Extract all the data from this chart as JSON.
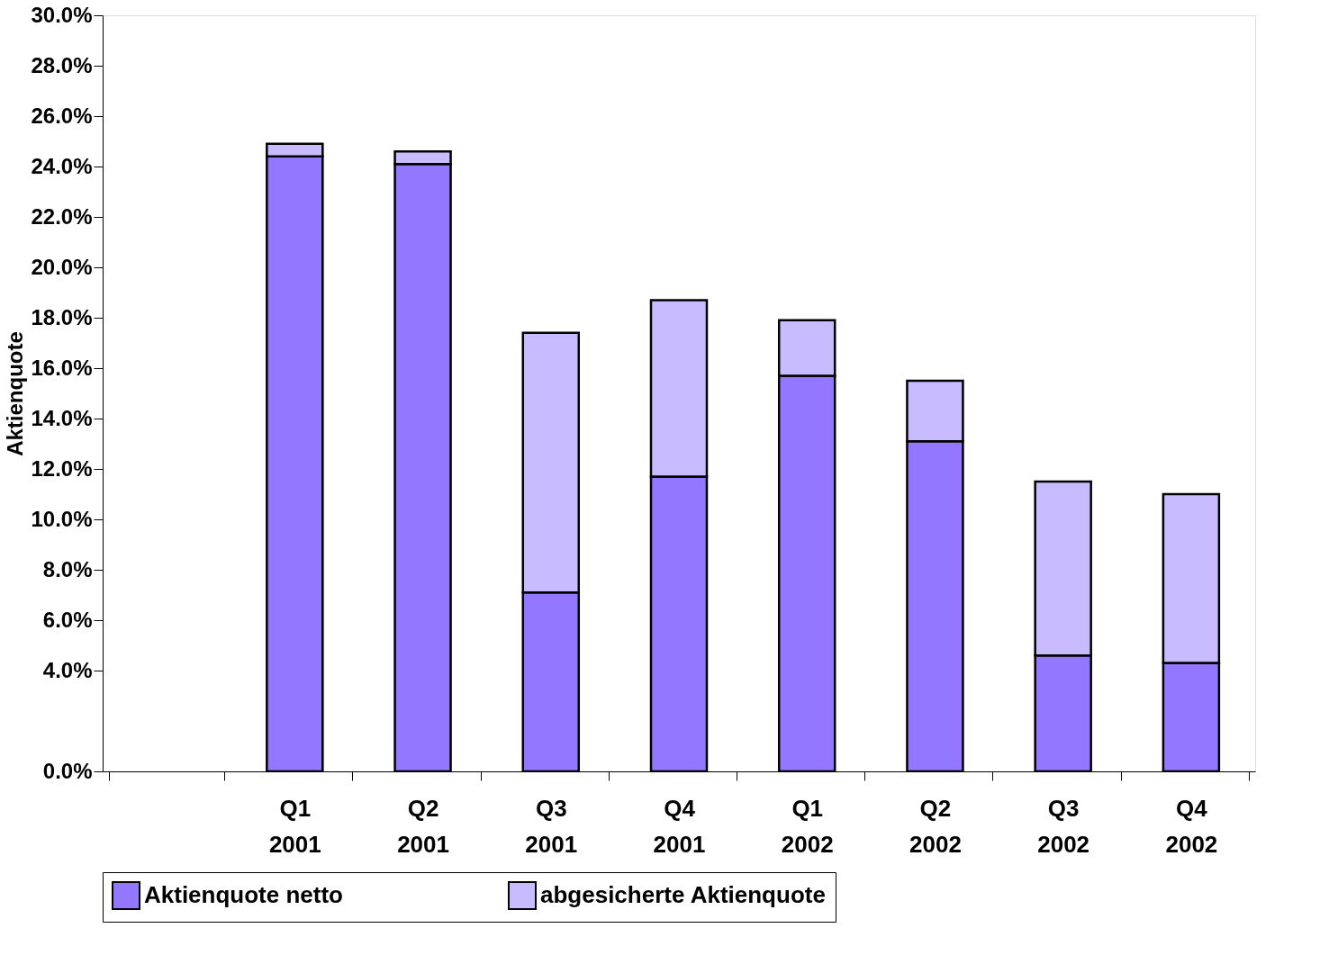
{
  "chart_data": {
    "type": "bar",
    "stacked": true,
    "ylabel": "Aktienquote",
    "categories": [
      null,
      "Q1\n2001",
      "Q2\n2001",
      "Q3\n2001",
      "Q4\n2001",
      "Q1\n2002",
      "Q2\n2002",
      "Q3\n2002",
      "Q4\n2002"
    ],
    "series": [
      {
        "name": "Aktienquote netto",
        "color": "#9378ff",
        "values": [
          null,
          24.4,
          24.1,
          7.1,
          11.7,
          15.7,
          13.1,
          4.6,
          4.3
        ]
      },
      {
        "name": "abgesicherte Aktienquote",
        "color": "#c8bbff",
        "values": [
          null,
          0.5,
          0.5,
          10.3,
          7.0,
          2.2,
          2.4,
          6.9,
          6.7
        ]
      }
    ],
    "ylim": [
      0,
      30
    ],
    "yticks": [
      {
        "value": 0,
        "label": "0.0%"
      },
      {
        "value": 4,
        "label": "4.0%"
      },
      {
        "value": 6,
        "label": "6.0%"
      },
      {
        "value": 8,
        "label": "8.0%"
      },
      {
        "value": 10,
        "label": "10.0%"
      },
      {
        "value": 12,
        "label": "12.0%"
      },
      {
        "value": 14,
        "label": "14.0%"
      },
      {
        "value": 16,
        "label": "16.0%"
      },
      {
        "value": 18,
        "label": "18.0%"
      },
      {
        "value": 20,
        "label": "20.0%"
      },
      {
        "value": 22,
        "label": "22.0%"
      },
      {
        "value": 24,
        "label": "24.0%"
      },
      {
        "value": 26,
        "label": "26.0%"
      },
      {
        "value": 28,
        "label": "28.0%"
      },
      {
        "value": 30,
        "label": "30.0%"
      }
    ],
    "grid": false,
    "legend": "bottom"
  }
}
